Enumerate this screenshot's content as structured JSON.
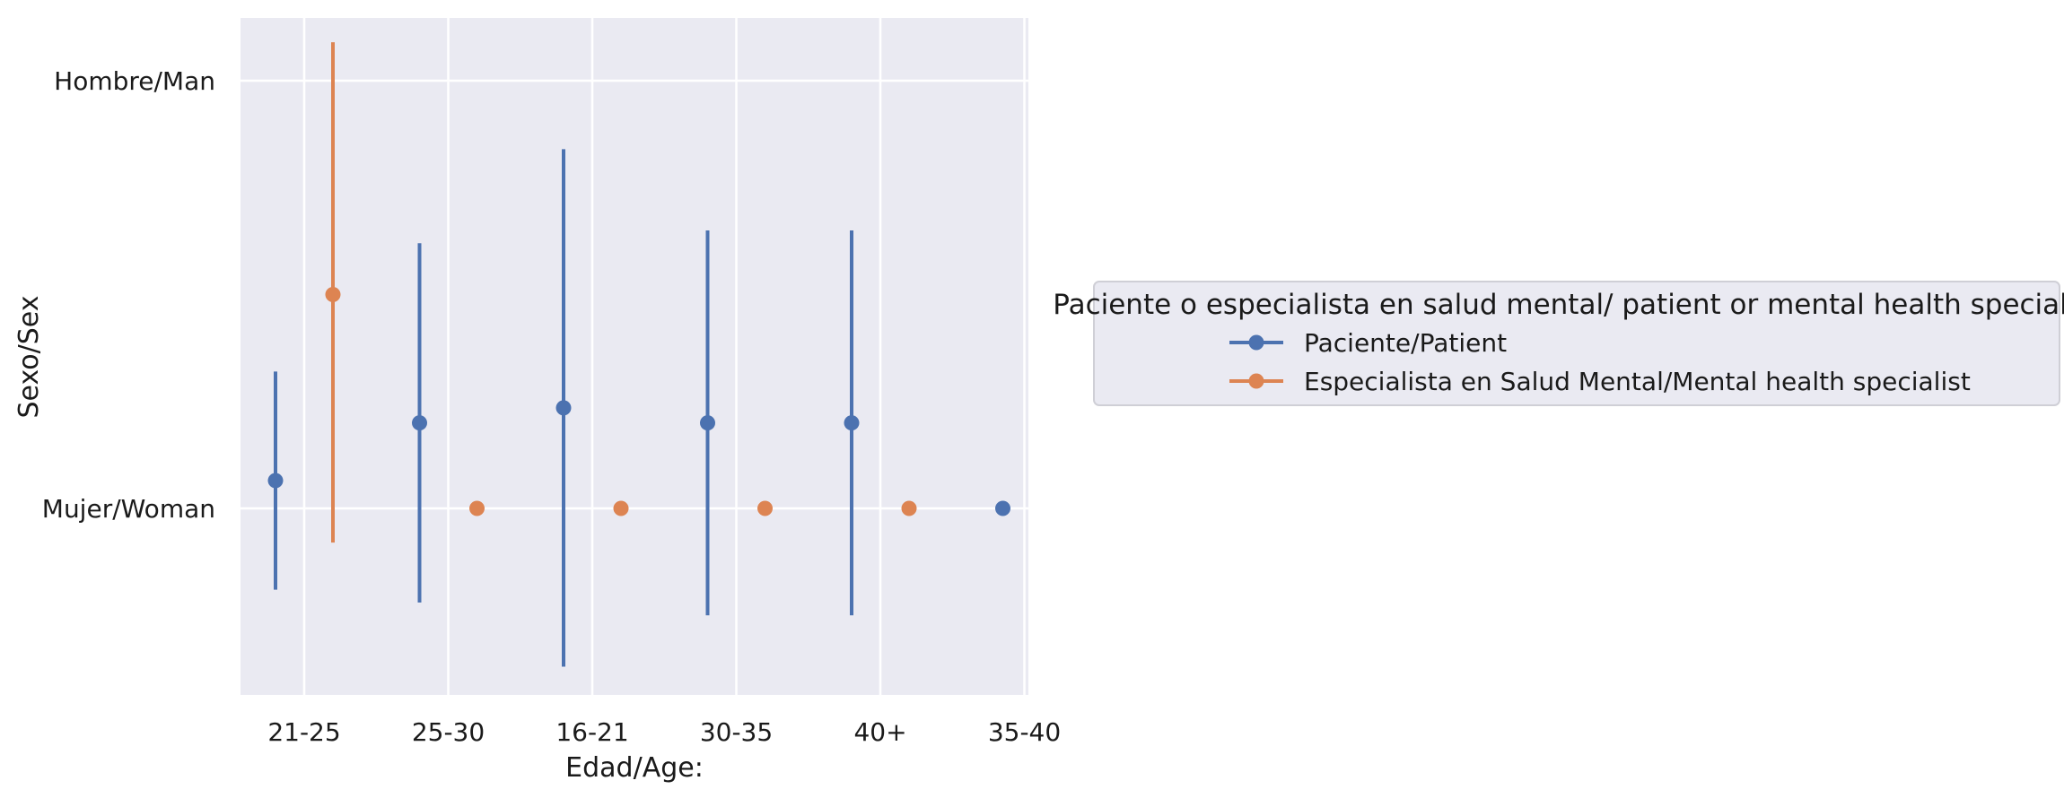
{
  "chart_data": {
    "type": "point",
    "xlabel": "Edad/Age:",
    "ylabel": "Sexo/Sex",
    "categories": [
      "21-25",
      "25-30",
      "16-21",
      "30-35",
      "40+",
      "35-40"
    ],
    "y_ticks": [
      {
        "label": "Hombre/Man",
        "value": 1
      },
      {
        "label": "Mujer/Woman",
        "value": 0
      }
    ],
    "ylim": [
      -0.43,
      1.15
    ],
    "grid": true,
    "legend": {
      "title": "Paciente o especialista en salud mental/ patient or mental health specialist",
      "placement": "right"
    },
    "series": [
      {
        "name": "Paciente/Patient",
        "color": "#4c72b0",
        "values": [
          0.065,
          0.2,
          0.235,
          0.2,
          0.2,
          0.0
        ],
        "ci_low": [
          -0.19,
          -0.22,
          -0.37,
          -0.25,
          -0.25,
          null
        ],
        "ci_high": [
          0.32,
          0.62,
          0.84,
          0.65,
          0.65,
          null
        ]
      },
      {
        "name": "Especialista en Salud Mental/Mental health specialist",
        "color": "#dd8452",
        "values": [
          0.5,
          0.0,
          0.0,
          0.0,
          0.0,
          null
        ],
        "ci_low": [
          -0.08,
          null,
          null,
          null,
          null,
          null
        ],
        "ci_high": [
          1.09,
          null,
          null,
          null,
          null,
          null
        ]
      }
    ]
  }
}
